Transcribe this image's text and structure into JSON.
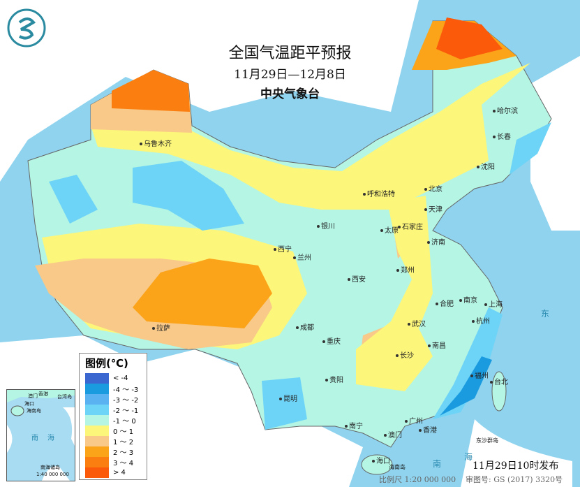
{
  "header": {
    "title": "全国气温距平预报",
    "date_range": "11月29日—12月8日",
    "issuer": "中央气象台"
  },
  "legend": {
    "title": "图例(℃)",
    "items": [
      {
        "label": "< -4",
        "color": "#3a68d0"
      },
      {
        "label": "-4 ～ -3",
        "color": "#1a9be0"
      },
      {
        "label": "-3 ～ -2",
        "color": "#5ab3f0"
      },
      {
        "label": "-2 ～ -1",
        "color": "#6ed4f7"
      },
      {
        "label": "-1 ～ 0",
        "color": "#b4f5e4"
      },
      {
        "label": "0 ～ 1",
        "color": "#fcf67a"
      },
      {
        "label": "1 ～ 2",
        "color": "#f8c988"
      },
      {
        "label": "2 ～ 3",
        "color": "#fba319"
      },
      {
        "label": "3 ～ 4",
        "color": "#fb7f10"
      },
      {
        "label": "> 4",
        "color": "#fa5a0a"
      }
    ]
  },
  "cities": [
    "乌鲁木齐",
    "哈尔滨",
    "长春",
    "沈阳",
    "呼和浩特",
    "北京",
    "天津",
    "银川",
    "太原",
    "石家庄",
    "济南",
    "西宁",
    "兰州",
    "郑州",
    "西安",
    "南京",
    "合肥",
    "上海",
    "武汉",
    "杭州",
    "拉萨",
    "成都",
    "重庆",
    "长沙",
    "南昌",
    "福州",
    "台北",
    "贵阳",
    "昆明",
    "南宁",
    "广州",
    "香港",
    "澳门",
    "海口"
  ],
  "places": {
    "hainan": "海南岛",
    "dongsha": "东沙群岛",
    "south": "南",
    "sea": "海",
    "east": "东"
  },
  "inset": {
    "haikou": "海口",
    "hainan": "海南岛",
    "taiwan": "台湾岛",
    "hk": "香港",
    "macau": "澳门",
    "south": "南",
    "sea": "海",
    "islands": "南海诸岛",
    "scale": "1:40 000 000"
  },
  "footer": {
    "published": "11月29日10时发布",
    "scale": "比例尺 1:20 000 000",
    "approval": "审图号: GS (2017) 3320号"
  }
}
